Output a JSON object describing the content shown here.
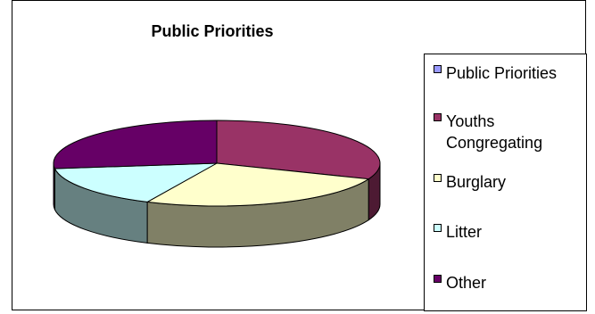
{
  "chart_data": {
    "type": "pie",
    "style": "3d",
    "title": "Public Priorities",
    "legend_position": "right",
    "slices": [
      {
        "name": "Youths Congregating",
        "value": 31,
        "color": "#993366",
        "side_color": "#4d1a33"
      },
      {
        "name": "Burglary",
        "value": 26,
        "color": "#ffffcc",
        "side_color": "#808066"
      },
      {
        "name": "Litter",
        "value": 16,
        "color": "#ccffff",
        "side_color": "#668080"
      },
      {
        "name": "Other",
        "value": 27,
        "color": "#660066",
        "side_color": "#330033"
      }
    ],
    "legend": [
      {
        "label": "Public Priorities",
        "color": "#9999ff"
      },
      {
        "label": "Youths Congregating",
        "color": "#993366"
      },
      {
        "label": "Burglary",
        "color": "#ffffcc"
      },
      {
        "label": "Litter",
        "color": "#ccffff"
      },
      {
        "label": "Other",
        "color": "#660066"
      }
    ]
  }
}
